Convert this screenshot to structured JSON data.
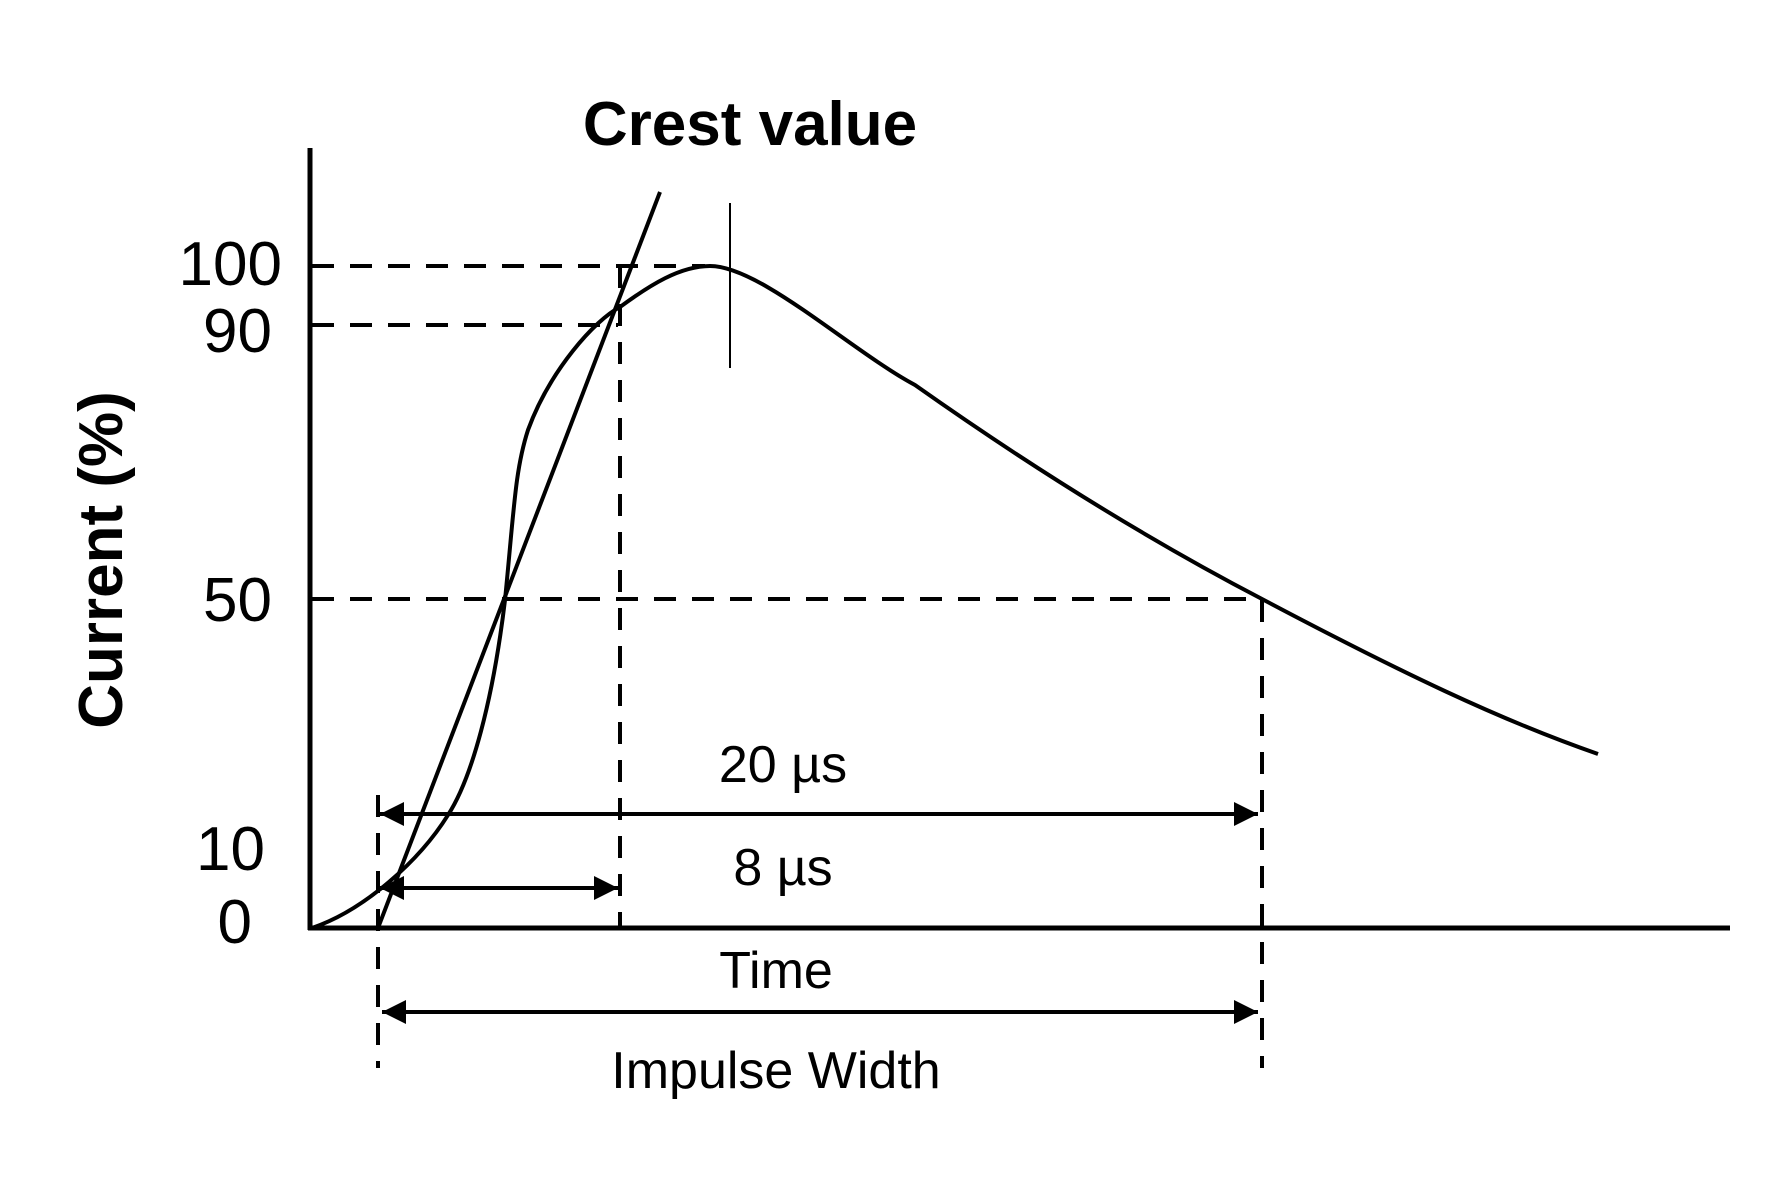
{
  "title": "Crest value",
  "y_axis_label": "Current (%)",
  "y_ticks": [
    "100",
    "90",
    "50",
    "10",
    "0"
  ],
  "x_axis_label": "Time",
  "annotations": {
    "front_time": "8 µs",
    "half_value_time": "20 µs",
    "impulse_width": "Impulse Width"
  },
  "colors": {
    "ink": "#000000",
    "background": "#ffffff"
  }
}
